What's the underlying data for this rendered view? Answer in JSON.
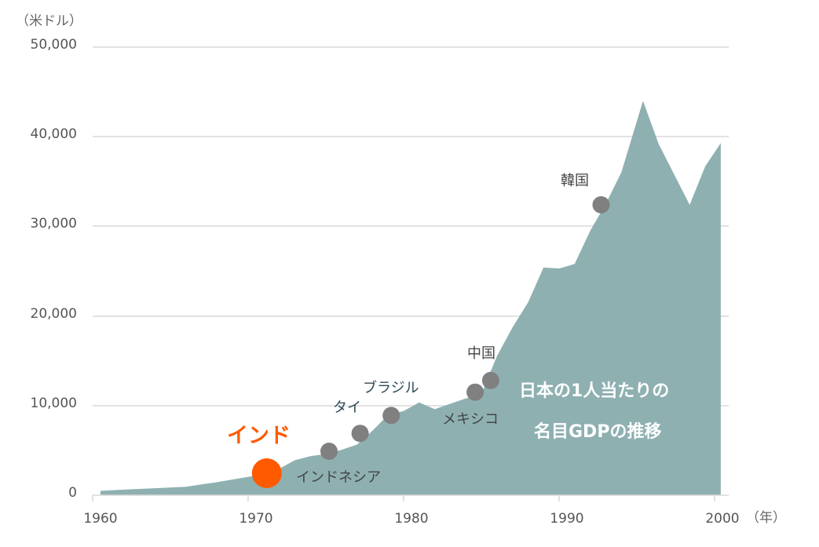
{
  "chart_data": {
    "type": "area",
    "title": "日本の1人当たりの名目GDPの推移",
    "xlabel": "（年）",
    "ylabel": "（米ドル）",
    "xlim": [
      1960,
      2000
    ],
    "ylim": [
      0,
      50000
    ],
    "grid": true,
    "x_ticks": [
      "1960",
      "1970",
      "1980",
      "1990",
      "2000"
    ],
    "y_ticks": [
      "0",
      "10,000",
      "20,000",
      "30,000",
      "40,000",
      "50,000"
    ],
    "series": [
      {
        "name": "日本の1人当たりの名目GDP",
        "color": "#8fb0b1",
        "x": [
          1960.5,
          1962,
          1964,
          1966,
          1968,
          1969,
          1970,
          1971,
          1972,
          1973,
          1974,
          1975,
          1976,
          1977,
          1978,
          1979,
          1980,
          1981,
          1982,
          1983,
          1984,
          1985,
          1986,
          1987,
          1988,
          1989,
          1990,
          1991,
          1992,
          1993,
          1994,
          1995.4,
          1996.4,
          1998.4,
          1999.4,
          2000.4
        ],
        "values": [
          480,
          620,
          780,
          950,
          1450,
          1750,
          2050,
          2300,
          2950,
          3900,
          4350,
          4600,
          5050,
          5650,
          7200,
          8950,
          9400,
          10350,
          9600,
          10200,
          10800,
          11300,
          15500,
          18700,
          21500,
          25400,
          25300,
          25800,
          29500,
          32500,
          36000,
          44000,
          39200,
          32400,
          36700,
          39300
        ]
      }
    ],
    "annotations": [
      {
        "label": "インド",
        "x": 1971.2,
        "y": 2450,
        "highlight": true,
        "color": "#ff5a00"
      },
      {
        "label": "インドネシア",
        "x": 1975.2,
        "y": 4900,
        "color": "#808080"
      },
      {
        "label": "タイ",
        "x": 1977.2,
        "y": 6900,
        "color": "#808080"
      },
      {
        "label": "ブラジル",
        "x": 1979.2,
        "y": 8900,
        "color": "#808080"
      },
      {
        "label": "メキシコ",
        "x": 1984.6,
        "y": 11500,
        "color": "#808080"
      },
      {
        "label": "中国",
        "x": 1985.6,
        "y": 12800,
        "color": "#808080"
      },
      {
        "label": "韓国",
        "x": 1992.7,
        "y": 32400,
        "color": "#808080"
      }
    ],
    "overlay_text": [
      "日本の1人当たりの",
      "名目GDPの推移"
    ]
  },
  "labels": {
    "unit_y": "（米ドル）",
    "unit_x": "（年）",
    "y_ticks": [
      "50,000",
      "40,000",
      "30,000",
      "20,000",
      "10,000",
      "0"
    ],
    "x_ticks": [
      "1960",
      "1970",
      "1980",
      "1990",
      "2000"
    ],
    "india": "インド",
    "indonesia": "インドネシア",
    "thailand": "タイ",
    "brazil": "ブラジル",
    "mexico": "メキシコ",
    "china": "中国",
    "korea": "韓国",
    "overlay_line1": "日本の1人当たりの",
    "overlay_line2": "名目GDPの推移"
  },
  "colors": {
    "area": "#8fb0b1",
    "grid": "#d9d9d9",
    "dot": "#808080",
    "highlight": "#ff5a00"
  }
}
